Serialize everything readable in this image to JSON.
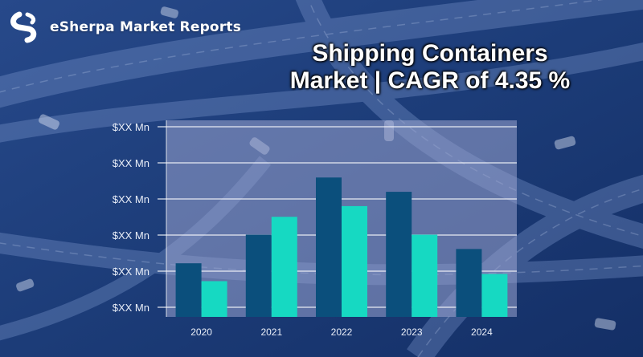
{
  "brand": {
    "name": "eSherpa Market Reports"
  },
  "title_line1": "Shipping Containers",
  "title_line2": "Market | CAGR of 4.35 %",
  "colors": {
    "series_dark": "#0b4f7c",
    "series_light": "#16d9c2",
    "plot_bg": "#9aa4cf",
    "gridline": "#ffffff",
    "axis_text": "#e9eef8"
  },
  "chart_data": {
    "type": "bar",
    "title": "Shipping Containers Market | CAGR of 4.35 %",
    "categories": [
      "2020",
      "2021",
      "2022",
      "2023",
      "2024"
    ],
    "y_tick_labels": [
      "$XX Mn",
      "$XX Mn",
      "$XX Mn",
      "$XX Mn",
      "$XX Mn",
      "$XX Mn"
    ],
    "ylim": [
      0,
      5.5
    ],
    "grid": true,
    "series": [
      {
        "values": [
          1.5,
          2.3,
          3.9,
          3.5,
          1.9
        ]
      },
      {
        "values": [
          1.0,
          2.8,
          3.1,
          2.3,
          1.2
        ]
      }
    ]
  }
}
